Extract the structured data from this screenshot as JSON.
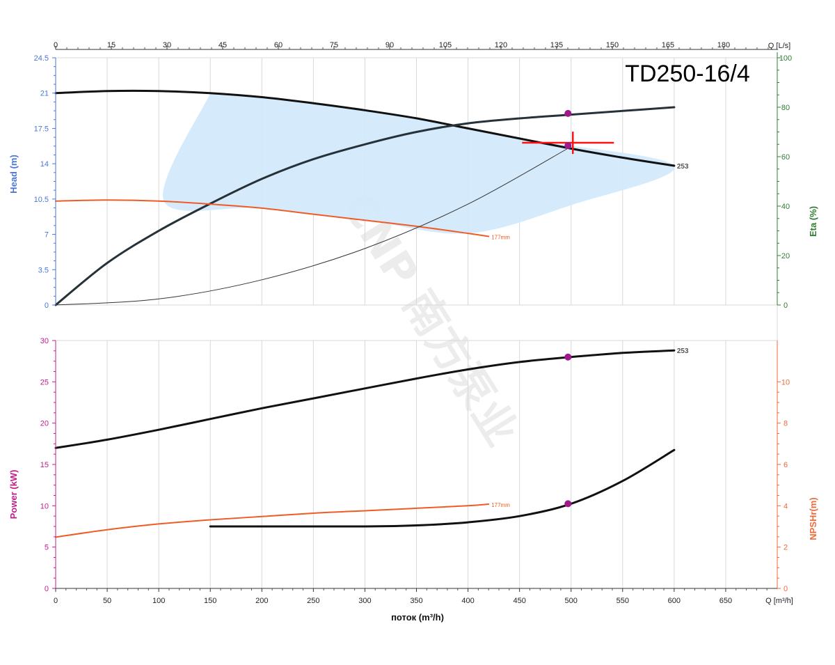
{
  "colors": {
    "head_axis": "#4a76d8",
    "eta_axis": "#2e7d32",
    "power_axis": "#c21d8a",
    "npsh_axis": "#ef6a3a",
    "curve": "#111111",
    "npsh_curve": "#ef5b25",
    "op_marker": "#9c1a8c",
    "op_cross": "#ff1111",
    "range_fill": "#d3e9fb"
  },
  "chart_data": {
    "type": "line",
    "title": "TD250-16/4",
    "watermark": "CNP 南方泵业",
    "x_bottom": {
      "label": "поток (m³/h)",
      "unit_label": "Q [m³/h]",
      "range": [
        0,
        700
      ],
      "ticks": [
        "0",
        "50",
        "100",
        "150",
        "200",
        "250",
        "300",
        "350",
        "400",
        "450",
        "500",
        "550",
        "600",
        "650"
      ]
    },
    "x_top": {
      "unit_label": "Q [L/s]",
      "ticks": [
        "0",
        "15",
        "30",
        "45",
        "60",
        "75",
        "90",
        "105",
        "120",
        "135",
        "150",
        "165",
        "180"
      ]
    },
    "upper_panel": {
      "y_left": {
        "label": "Head (m)",
        "range": [
          0,
          24.5
        ],
        "ticks": [
          "0",
          "3.5",
          "7",
          "10.5",
          "14",
          "17.5",
          "21",
          "24.5"
        ]
      },
      "y_right": {
        "label": "Eta (%)",
        "range": [
          0,
          100
        ],
        "ticks": [
          "0",
          "20",
          "40",
          "60",
          "80",
          "100"
        ]
      },
      "series": [
        {
          "name": "253",
          "axis": "head",
          "x": [
            0,
            50,
            100,
            150,
            200,
            250,
            300,
            350,
            400,
            450,
            500,
            550,
            600
          ],
          "y": [
            21.0,
            21.2,
            21.2,
            21.0,
            20.6,
            20.0,
            19.3,
            18.5,
            17.5,
            16.5,
            15.5,
            14.6,
            13.8
          ]
        },
        {
          "name": "",
          "axis": "eta",
          "x": [
            0,
            50,
            100,
            150,
            200,
            250,
            300,
            350,
            400,
            450,
            500,
            550,
            600
          ],
          "y": [
            0,
            17,
            30,
            41,
            51,
            59,
            65,
            70,
            73.5,
            75.5,
            77,
            78.5,
            80
          ]
        },
        {
          "name": "177mm",
          "axis": "head",
          "x": [
            0,
            50,
            100,
            150,
            200,
            250,
            300,
            350,
            400,
            420
          ],
          "y": [
            10.3,
            10.4,
            10.3,
            10.0,
            9.6,
            9.0,
            8.4,
            7.8,
            7.1,
            6.8
          ]
        },
        {
          "name": "",
          "axis": "head",
          "x": [
            0,
            100,
            200,
            300,
            400,
            500
          ],
          "y": [
            0,
            0.6,
            2.5,
            5.6,
            10.0,
            15.7
          ]
        }
      ],
      "range_band": {
        "x": [
          150,
          250,
          350,
          450,
          600,
          500,
          400,
          300,
          200,
          105,
          150
        ],
        "y": [
          21.0,
          20.0,
          18.5,
          16.5,
          13.8,
          9.9,
          7.1,
          8.4,
          9.6,
          10.3,
          21.0
        ]
      },
      "operating_point": {
        "flow": 497,
        "head": 15.8,
        "eta": 77.5
      }
    },
    "lower_panel": {
      "y_left": {
        "label": "Power (kW)",
        "range": [
          0,
          30
        ],
        "ticks": [
          "0",
          "5",
          "10",
          "15",
          "20",
          "25",
          "30"
        ]
      },
      "y_right": {
        "label": "NPSHr(m)",
        "range": [
          0,
          12
        ],
        "ticks": [
          "0",
          "2",
          "4",
          "6",
          "8",
          "10"
        ]
      },
      "series": [
        {
          "name": "253",
          "axis": "power",
          "x": [
            0,
            50,
            100,
            150,
            200,
            250,
            300,
            350,
            400,
            450,
            500,
            550,
            600
          ],
          "y": [
            17.0,
            18.0,
            19.2,
            20.5,
            21.8,
            23.0,
            24.2,
            25.4,
            26.5,
            27.4,
            28.0,
            28.5,
            28.8
          ]
        },
        {
          "name": "177mm",
          "axis": "power",
          "x": [
            0,
            50,
            100,
            150,
            200,
            250,
            300,
            350,
            400,
            420
          ],
          "y": [
            6.2,
            7.1,
            7.8,
            8.3,
            8.7,
            9.1,
            9.4,
            9.7,
            10.0,
            10.2
          ]
        },
        {
          "name": "",
          "axis": "npsh",
          "x": [
            150,
            200,
            250,
            300,
            350,
            400,
            450,
            500,
            550,
            600
          ],
          "y": [
            3.0,
            3.0,
            3.0,
            3.0,
            3.05,
            3.2,
            3.5,
            4.1,
            5.2,
            6.7
          ]
        }
      ],
      "operating_point": {
        "flow": 497,
        "power": 28.0,
        "npsh": 4.1
      }
    }
  }
}
